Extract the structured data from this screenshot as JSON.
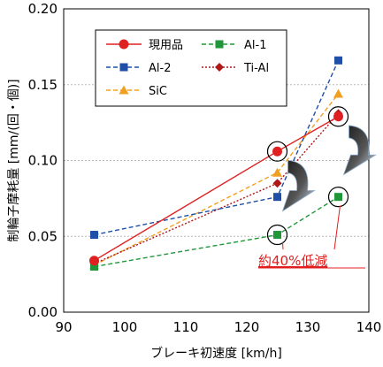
{
  "chart_data": {
    "type": "line",
    "title": "",
    "xlabel": "ブレーキ初速度 [km/h]",
    "ylabel": "制輪子摩耗量 [mm/(回・個)]",
    "xlim": [
      90,
      140
    ],
    "ylim": [
      0.0,
      0.2
    ],
    "xticks": [
      90,
      100,
      110,
      120,
      130,
      140
    ],
    "xtick_labels": [
      "90",
      "100",
      "110",
      "120",
      "130",
      "140"
    ],
    "yticks": [
      0.0,
      0.05,
      0.1,
      0.15,
      0.2
    ],
    "ytick_labels": [
      "0.00",
      "0.05",
      "0.10",
      "0.15",
      "0.20"
    ],
    "grid": "horizontal dashed at 0.05, 0.10, 0.15",
    "legend_position": "top-left",
    "series": [
      {
        "name": "現用品",
        "color": "#e02020",
        "dash": "solid",
        "marker": "circle",
        "x": [
          95,
          125,
          135
        ],
        "y": [
          0.034,
          0.106,
          0.129
        ]
      },
      {
        "name": "Al-1",
        "color": "#22963a",
        "dash": "dashed",
        "marker": "square",
        "x": [
          95,
          125,
          135
        ],
        "y": [
          0.03,
          0.051,
          0.076
        ]
      },
      {
        "name": "Al-2",
        "color": "#1f4fa8",
        "dash": "dashed",
        "marker": "square",
        "x": [
          95,
          125,
          135
        ],
        "y": [
          0.051,
          0.076,
          0.166
        ]
      },
      {
        "name": "Ti-Al",
        "color": "#b01818",
        "dash": "dotted",
        "marker": "diamond",
        "x": [
          95,
          125,
          135
        ],
        "y": [
          0.032,
          0.085,
          0.131
        ]
      },
      {
        "name": "SiC",
        "color": "#f0a020",
        "dash": "dashed",
        "marker": "triangle",
        "x": [
          95,
          125,
          135
        ],
        "y": [
          0.031,
          0.092,
          0.144
        ]
      }
    ],
    "highlight_circles": [
      {
        "x": 125,
        "y": 0.106
      },
      {
        "x": 125,
        "y": 0.051
      },
      {
        "x": 135,
        "y": 0.129
      },
      {
        "x": 135,
        "y": 0.076
      }
    ],
    "annotation": {
      "text": "約40%低減",
      "color": "#e02020"
    }
  }
}
